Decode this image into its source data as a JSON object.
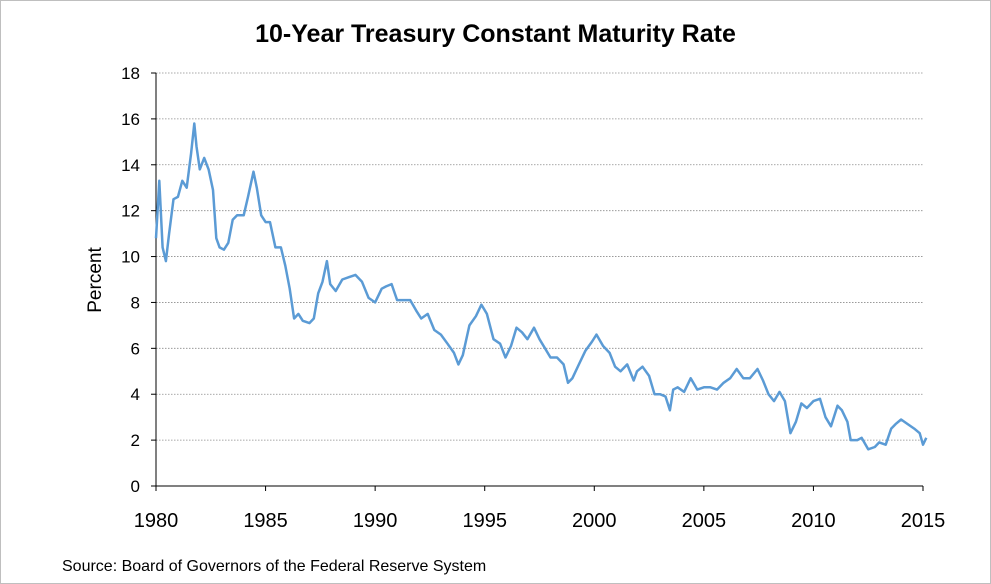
{
  "chart_data": {
    "type": "line",
    "title": "10-Year Treasury Constant Maturity Rate",
    "xlabel": "",
    "ylabel": "Percent",
    "source": "Source: Board of Governors of the Federal Reserve System",
    "xlim": [
      1980,
      2015
    ],
    "ylim": [
      0,
      18
    ],
    "x_ticks": [
      "1980",
      "1985",
      "1990",
      "1995",
      "2000",
      "2005",
      "2010",
      "2015"
    ],
    "y_ticks": [
      "0",
      "2",
      "4",
      "6",
      "8",
      "10",
      "12",
      "14",
      "16",
      "18"
    ],
    "grid": "horizontal",
    "line_color": "#5b9bd5",
    "series": [
      {
        "values": [
          [
            1980.0,
            10.8
          ],
          [
            1980.15,
            13.3
          ],
          [
            1980.3,
            10.4
          ],
          [
            1980.45,
            9.8
          ],
          [
            1980.6,
            11.0
          ],
          [
            1980.8,
            12.5
          ],
          [
            1981.0,
            12.6
          ],
          [
            1981.2,
            13.3
          ],
          [
            1981.4,
            13.0
          ],
          [
            1981.6,
            14.5
          ],
          [
            1981.75,
            15.8
          ],
          [
            1981.85,
            14.8
          ],
          [
            1982.0,
            13.8
          ],
          [
            1982.2,
            14.3
          ],
          [
            1982.4,
            13.8
          ],
          [
            1982.6,
            12.9
          ],
          [
            1982.75,
            10.8
          ],
          [
            1982.9,
            10.4
          ],
          [
            1983.1,
            10.3
          ],
          [
            1983.3,
            10.6
          ],
          [
            1983.5,
            11.6
          ],
          [
            1983.7,
            11.8
          ],
          [
            1984.0,
            11.8
          ],
          [
            1984.2,
            12.6
          ],
          [
            1984.45,
            13.7
          ],
          [
            1984.6,
            13.0
          ],
          [
            1984.8,
            11.8
          ],
          [
            1985.0,
            11.5
          ],
          [
            1985.2,
            11.5
          ],
          [
            1985.45,
            10.4
          ],
          [
            1985.7,
            10.4
          ],
          [
            1985.9,
            9.6
          ],
          [
            1986.1,
            8.6
          ],
          [
            1986.3,
            7.3
          ],
          [
            1986.5,
            7.5
          ],
          [
            1986.7,
            7.2
          ],
          [
            1987.0,
            7.1
          ],
          [
            1987.2,
            7.3
          ],
          [
            1987.4,
            8.4
          ],
          [
            1987.6,
            8.9
          ],
          [
            1987.8,
            9.8
          ],
          [
            1987.95,
            8.8
          ],
          [
            1988.2,
            8.5
          ],
          [
            1988.5,
            9.0
          ],
          [
            1988.8,
            9.1
          ],
          [
            1989.1,
            9.2
          ],
          [
            1989.4,
            8.9
          ],
          [
            1989.7,
            8.2
          ],
          [
            1990.0,
            8.0
          ],
          [
            1990.3,
            8.6
          ],
          [
            1990.5,
            8.7
          ],
          [
            1990.75,
            8.8
          ],
          [
            1991.0,
            8.1
          ],
          [
            1991.3,
            8.1
          ],
          [
            1991.6,
            8.1
          ],
          [
            1991.9,
            7.6
          ],
          [
            1992.1,
            7.3
          ],
          [
            1992.4,
            7.5
          ],
          [
            1992.7,
            6.8
          ],
          [
            1993.0,
            6.6
          ],
          [
            1993.3,
            6.2
          ],
          [
            1993.6,
            5.8
          ],
          [
            1993.8,
            5.3
          ],
          [
            1994.0,
            5.7
          ],
          [
            1994.3,
            7.0
          ],
          [
            1994.6,
            7.4
          ],
          [
            1994.85,
            7.9
          ],
          [
            1995.1,
            7.5
          ],
          [
            1995.4,
            6.4
          ],
          [
            1995.7,
            6.2
          ],
          [
            1995.95,
            5.6
          ],
          [
            1996.2,
            6.1
          ],
          [
            1996.45,
            6.9
          ],
          [
            1996.7,
            6.7
          ],
          [
            1996.95,
            6.4
          ],
          [
            1997.25,
            6.9
          ],
          [
            1997.5,
            6.4
          ],
          [
            1997.75,
            6.0
          ],
          [
            1998.0,
            5.6
          ],
          [
            1998.3,
            5.6
          ],
          [
            1998.6,
            5.3
          ],
          [
            1998.8,
            4.5
          ],
          [
            1999.0,
            4.7
          ],
          [
            1999.3,
            5.3
          ],
          [
            1999.6,
            5.9
          ],
          [
            1999.9,
            6.3
          ],
          [
            2000.1,
            6.6
          ],
          [
            2000.4,
            6.1
          ],
          [
            2000.7,
            5.8
          ],
          [
            2000.95,
            5.2
          ],
          [
            2001.2,
            5.0
          ],
          [
            2001.5,
            5.3
          ],
          [
            2001.8,
            4.6
          ],
          [
            2001.95,
            5.0
          ],
          [
            2002.2,
            5.2
          ],
          [
            2002.5,
            4.8
          ],
          [
            2002.75,
            4.0
          ],
          [
            2003.0,
            4.0
          ],
          [
            2003.25,
            3.9
          ],
          [
            2003.45,
            3.3
          ],
          [
            2003.6,
            4.2
          ],
          [
            2003.8,
            4.3
          ],
          [
            2004.1,
            4.1
          ],
          [
            2004.4,
            4.7
          ],
          [
            2004.7,
            4.2
          ],
          [
            2005.0,
            4.3
          ],
          [
            2005.3,
            4.3
          ],
          [
            2005.6,
            4.2
          ],
          [
            2005.9,
            4.5
          ],
          [
            2006.2,
            4.7
          ],
          [
            2006.5,
            5.1
          ],
          [
            2006.8,
            4.7
          ],
          [
            2007.1,
            4.7
          ],
          [
            2007.45,
            5.1
          ],
          [
            2007.7,
            4.6
          ],
          [
            2007.95,
            4.0
          ],
          [
            2008.2,
            3.7
          ],
          [
            2008.45,
            4.1
          ],
          [
            2008.7,
            3.7
          ],
          [
            2008.95,
            2.3
          ],
          [
            2009.2,
            2.8
          ],
          [
            2009.45,
            3.6
          ],
          [
            2009.7,
            3.4
          ],
          [
            2010.0,
            3.7
          ],
          [
            2010.3,
            3.8
          ],
          [
            2010.55,
            3.0
          ],
          [
            2010.8,
            2.6
          ],
          [
            2011.1,
            3.5
          ],
          [
            2011.3,
            3.3
          ],
          [
            2011.55,
            2.8
          ],
          [
            2011.7,
            2.0
          ],
          [
            2012.0,
            2.0
          ],
          [
            2012.2,
            2.1
          ],
          [
            2012.5,
            1.6
          ],
          [
            2012.8,
            1.7
          ],
          [
            2013.0,
            1.9
          ],
          [
            2013.3,
            1.8
          ],
          [
            2013.55,
            2.5
          ],
          [
            2013.75,
            2.7
          ],
          [
            2014.0,
            2.9
          ],
          [
            2014.3,
            2.7
          ],
          [
            2014.6,
            2.5
          ],
          [
            2014.85,
            2.3
          ],
          [
            2015.0,
            1.8
          ],
          [
            2015.15,
            2.1
          ]
        ]
      }
    ]
  }
}
